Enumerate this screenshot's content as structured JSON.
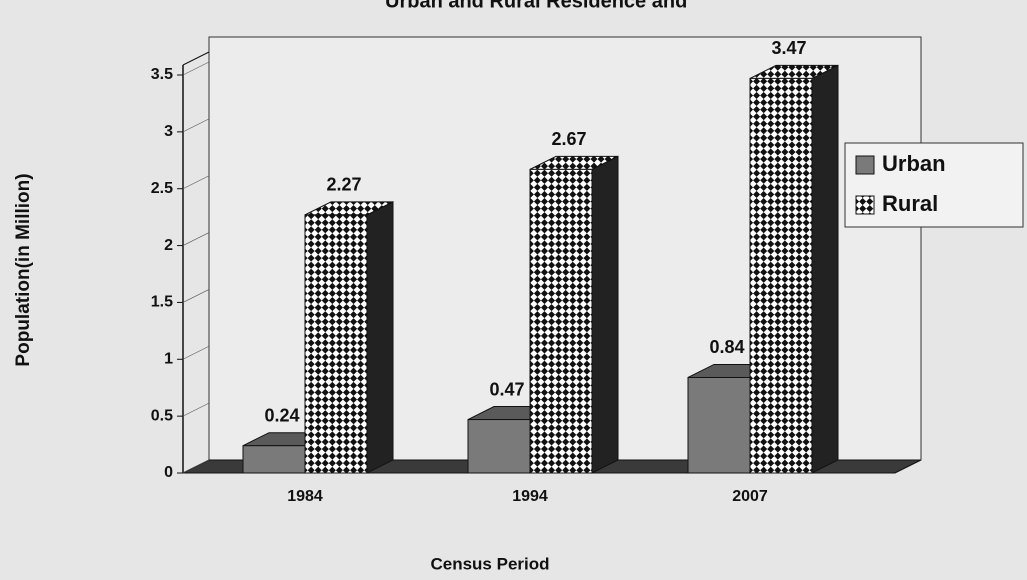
{
  "chart_data": {
    "type": "bar",
    "title": "Urban and Rural Residence and",
    "x_label": "Census Period",
    "y_label": "Population(in Million)",
    "categories": [
      "1984",
      "1994",
      "2007"
    ],
    "series": [
      {
        "name": "Urban",
        "color": "#7a7a7a",
        "values": [
          0.24,
          0.47,
          0.84
        ]
      },
      {
        "name": "Rural",
        "color": "#ffffff",
        "values": [
          2.27,
          2.67,
          3.47
        ]
      }
    ],
    "ylim": [
      0,
      3.5
    ],
    "yticks": [
      0,
      0.5,
      1,
      1.5,
      2,
      2.5,
      3,
      3.5
    ],
    "legend": "right"
  }
}
